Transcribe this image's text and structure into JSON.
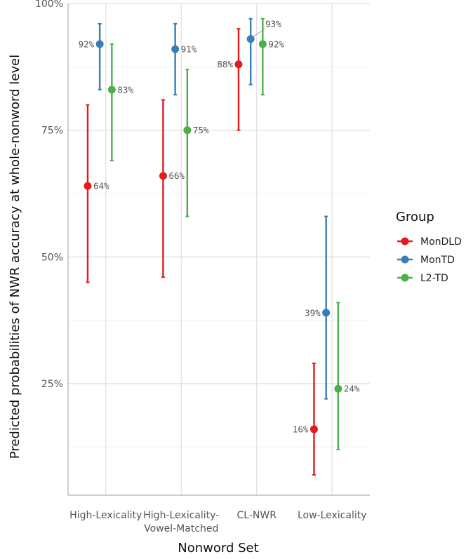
{
  "chart_data": {
    "type": "scatter",
    "xlabel": "Nonword Set",
    "ylabel": "Predicted probabilities of NWR accuracy at whole-nonword level",
    "categories": [
      [
        "High-Lexicality"
      ],
      [
        "High-Lexicality-",
        "Vowel-Matched"
      ],
      [
        "CL-NWR"
      ],
      [
        "Low-Lexicality"
      ]
    ],
    "ylim": [
      0.03,
      1.0
    ],
    "y_ticks": [
      0.25,
      0.5,
      0.75,
      1.0
    ],
    "y_tick_labels": [
      "25%",
      "50%",
      "75%",
      "100%"
    ],
    "grid": true,
    "legend": {
      "title": "Group",
      "placement": "right"
    },
    "series": [
      {
        "name": "MonDLD",
        "color": "#e41a1c",
        "values": [
          0.64,
          0.66,
          0.88,
          0.16
        ],
        "lower": [
          0.45,
          0.46,
          0.75,
          0.07
        ],
        "upper": [
          0.8,
          0.81,
          0.95,
          0.29
        ],
        "labels": [
          "64%",
          "66%",
          "88%",
          "16%"
        ]
      },
      {
        "name": "MonTD",
        "color": "#377eb8",
        "values": [
          0.92,
          0.91,
          0.93,
          0.39
        ],
        "lower": [
          0.83,
          0.82,
          0.84,
          0.22
        ],
        "upper": [
          0.96,
          0.96,
          0.97,
          0.58
        ],
        "labels": [
          "92%",
          "91%",
          "93%",
          "39%"
        ]
      },
      {
        "name": "L2-TD",
        "color": "#4daf4a",
        "values": [
          0.83,
          0.75,
          0.92,
          0.24
        ],
        "lower": [
          0.69,
          0.58,
          0.82,
          0.12
        ],
        "upper": [
          0.92,
          0.87,
          0.97,
          0.41
        ],
        "labels": [
          "83%",
          "75%",
          "92%",
          "24%"
        ]
      }
    ]
  }
}
